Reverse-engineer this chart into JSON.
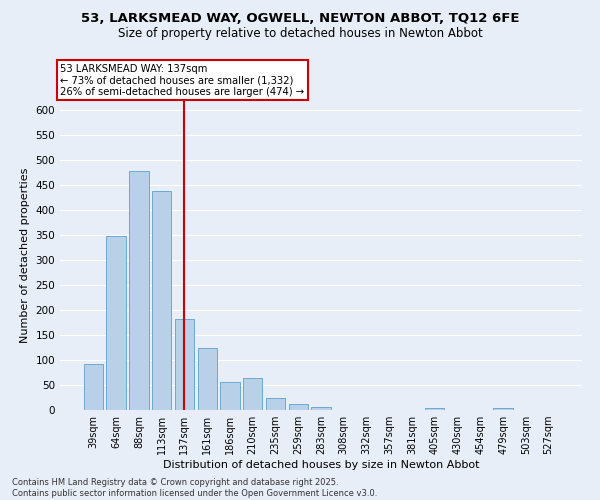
{
  "title1": "53, LARKSMEAD WAY, OGWELL, NEWTON ABBOT, TQ12 6FE",
  "title2": "Size of property relative to detached houses in Newton Abbot",
  "xlabel": "Distribution of detached houses by size in Newton Abbot",
  "ylabel": "Number of detached properties",
  "footer1": "Contains HM Land Registry data © Crown copyright and database right 2025.",
  "footer2": "Contains public sector information licensed under the Open Government Licence v3.0.",
  "bins": [
    "39sqm",
    "64sqm",
    "88sqm",
    "113sqm",
    "137sqm",
    "161sqm",
    "186sqm",
    "210sqm",
    "235sqm",
    "259sqm",
    "283sqm",
    "308sqm",
    "332sqm",
    "357sqm",
    "381sqm",
    "405sqm",
    "430sqm",
    "454sqm",
    "479sqm",
    "503sqm",
    "527sqm"
  ],
  "values": [
    92,
    348,
    478,
    438,
    183,
    125,
    57,
    65,
    24,
    13,
    7,
    0,
    0,
    0,
    0,
    5,
    0,
    0,
    4,
    0,
    0
  ],
  "bar_color": "#b8d0e8",
  "bar_edge_color": "#6aaad4",
  "vline_color": "#cc0000",
  "vline_bin_index": 4,
  "annotation_title": "53 LARKSMEAD WAY: 137sqm",
  "annotation_line1": "← 73% of detached houses are smaller (1,332)",
  "annotation_line2": "26% of semi-detached houses are larger (474) →",
  "annotation_box_facecolor": "#ffffff",
  "annotation_box_edgecolor": "#cc0000",
  "bg_color": "#e8eef8",
  "grid_color": "#ffffff",
  "ylim": [
    0,
    620
  ],
  "yticks": [
    0,
    50,
    100,
    150,
    200,
    250,
    300,
    350,
    400,
    450,
    500,
    550,
    600
  ]
}
